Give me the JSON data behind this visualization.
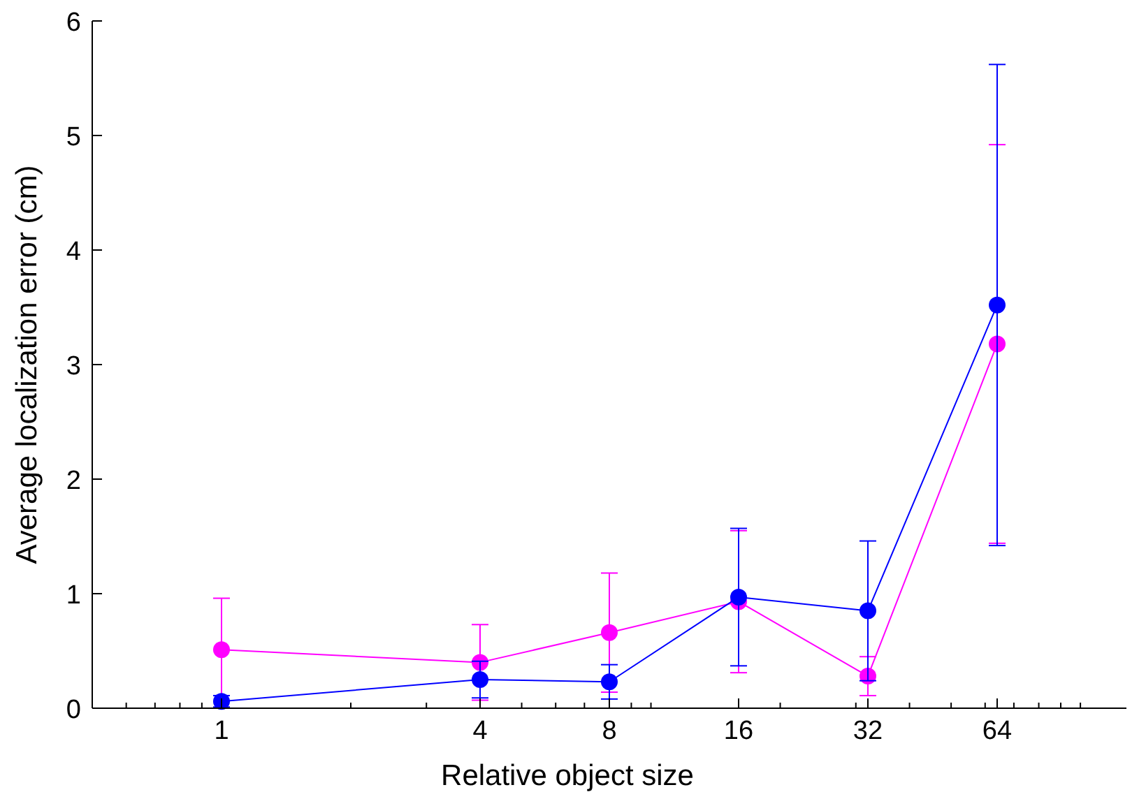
{
  "chart_data": {
    "type": "line",
    "xlabel": "Relative object size",
    "ylabel": "Average localization error (cm)",
    "log": "x",
    "x": [
      1,
      4,
      8,
      16,
      32,
      64
    ],
    "series": [
      {
        "color": "#0000ff",
        "values": [
          0.06,
          0.25,
          0.23,
          0.97,
          0.85,
          3.52
        ],
        "errors": [
          0.05,
          0.16,
          0.15,
          0.6,
          0.61,
          2.1
        ]
      },
      {
        "color": "#ff00ff",
        "values": [
          0.51,
          0.4,
          0.66,
          0.93,
          0.28,
          3.18
        ],
        "errors": [
          0.45,
          0.33,
          0.52,
          0.62,
          0.17,
          1.74
        ]
      }
    ],
    "marker": "circle",
    "xlim": [
      0.5,
      128
    ],
    "ylim": [
      0,
      6
    ],
    "xticks": [
      {
        "value": 0.6,
        "label": null
      },
      {
        "value": 0.7,
        "label": null
      },
      {
        "value": 0.8,
        "label": null
      },
      {
        "value": 0.9,
        "label": null
      },
      1,
      {
        "value": 2,
        "label": null
      },
      {
        "value": 3,
        "label": null
      },
      4,
      {
        "value": 5,
        "label": null
      },
      {
        "value": 6,
        "label": null
      },
      {
        "value": 7,
        "label": null
      },
      8,
      {
        "value": 9,
        "label": null
      },
      {
        "value": 10,
        "label": null
      },
      16,
      {
        "value": 20,
        "label": null
      },
      {
        "value": 30,
        "label": null
      },
      32,
      {
        "value": 40,
        "label": null
      },
      {
        "value": 50,
        "label": null
      },
      {
        "value": 60,
        "label": null
      },
      64,
      {
        "value": 70,
        "label": null
      },
      {
        "value": 80,
        "label": null
      },
      {
        "value": 90,
        "label": null
      },
      {
        "value": 100,
        "label": null
      }
    ],
    "yticks": [
      0,
      1,
      2,
      3,
      4,
      5,
      6
    ]
  }
}
